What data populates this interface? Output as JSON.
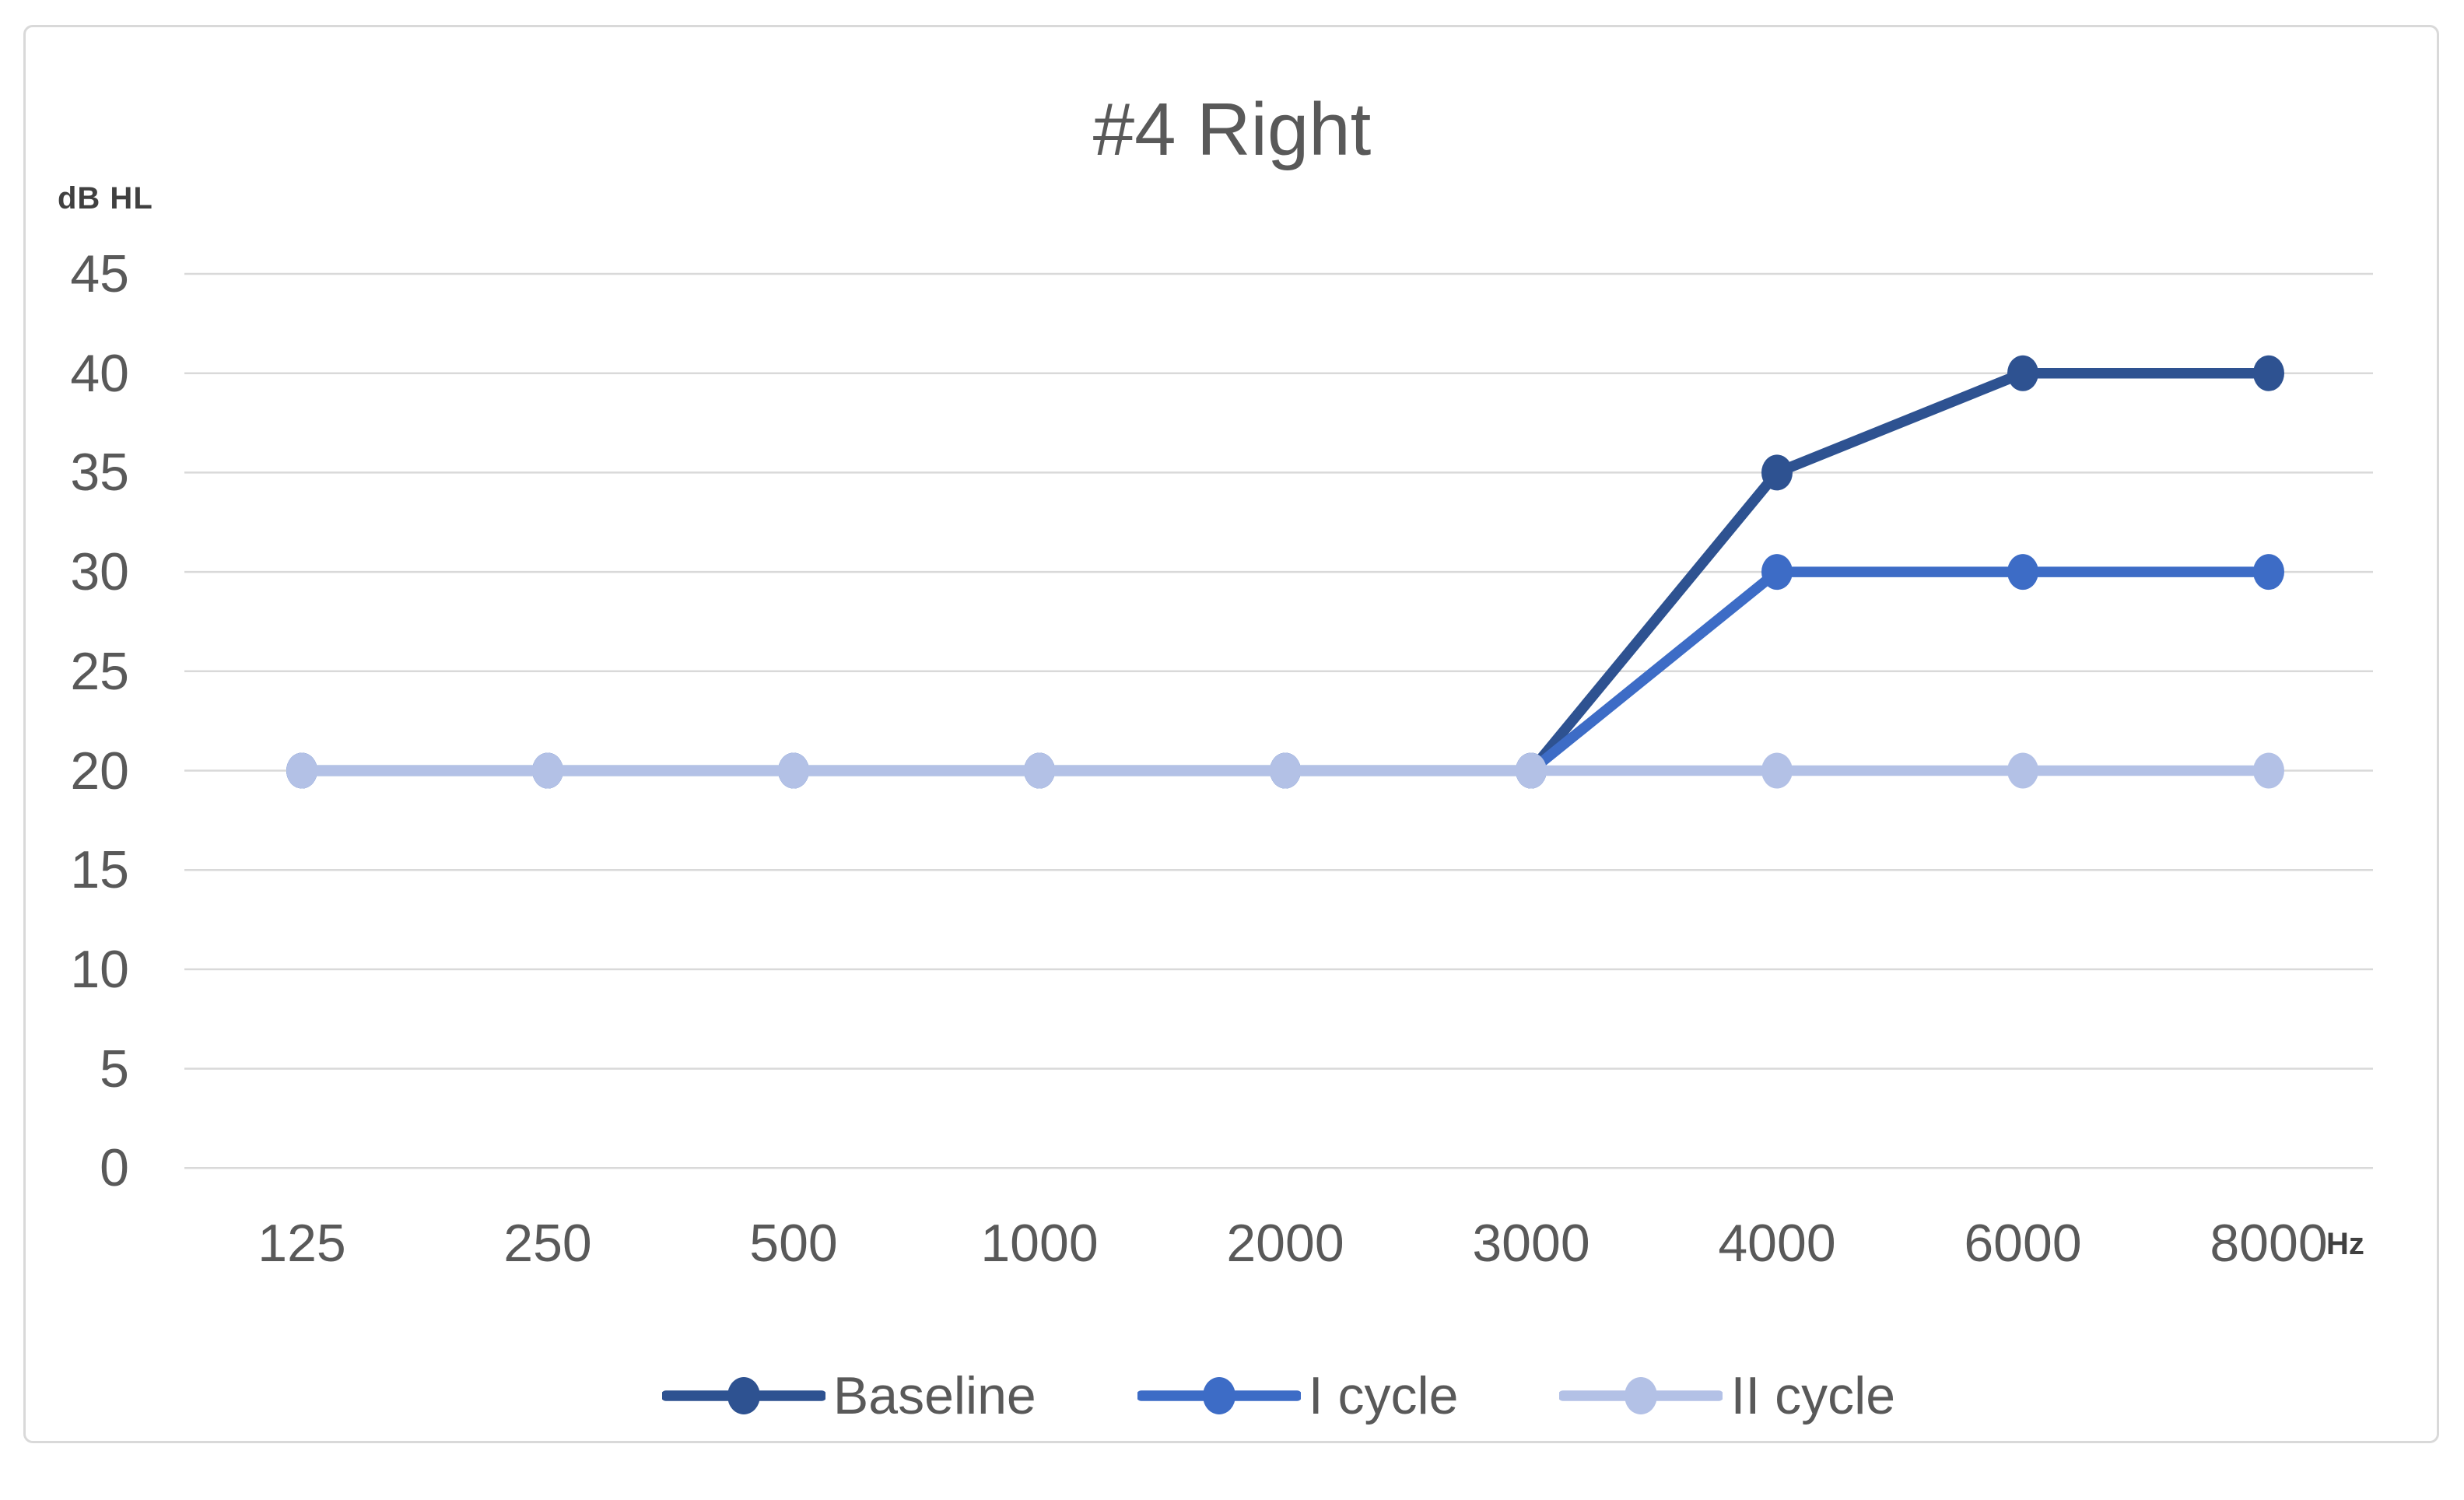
{
  "chart_data": {
    "type": "line",
    "title": "#4 Right",
    "y_axis_unit": "dB HL",
    "x_axis_unit": "Hz",
    "x_axis_type": "category",
    "categories": [
      "125",
      "250",
      "500",
      "1000",
      "2000",
      "3000",
      "4000",
      "6000",
      "8000"
    ],
    "series": [
      {
        "name": "Baseline",
        "slug": "baseline",
        "color": "#2E5291",
        "values": [
          20,
          20,
          20,
          20,
          20,
          20,
          35,
          40,
          40
        ]
      },
      {
        "name": "I cycle",
        "slug": "i-cycle",
        "color": "#3D6CC6",
        "values": [
          20,
          20,
          20,
          20,
          20,
          20,
          30,
          30,
          30
        ]
      },
      {
        "name": "II cycle",
        "slug": "ii-cycle",
        "color": "#B3C1E6",
        "values": [
          20,
          20,
          20,
          20,
          20,
          20,
          20,
          20,
          20
        ]
      }
    ],
    "yticks": [
      45,
      40,
      35,
      30,
      25,
      20,
      15,
      10,
      5,
      0
    ],
    "ylim": [
      0,
      45
    ],
    "grid": "horizontal",
    "legend_position": "bottom",
    "colors": {
      "text": "#595959",
      "unit_text": "#404040",
      "gridline": "#D9D9D9",
      "frame_border": "#D9D9D9",
      "background": "#FFFFFF"
    }
  }
}
